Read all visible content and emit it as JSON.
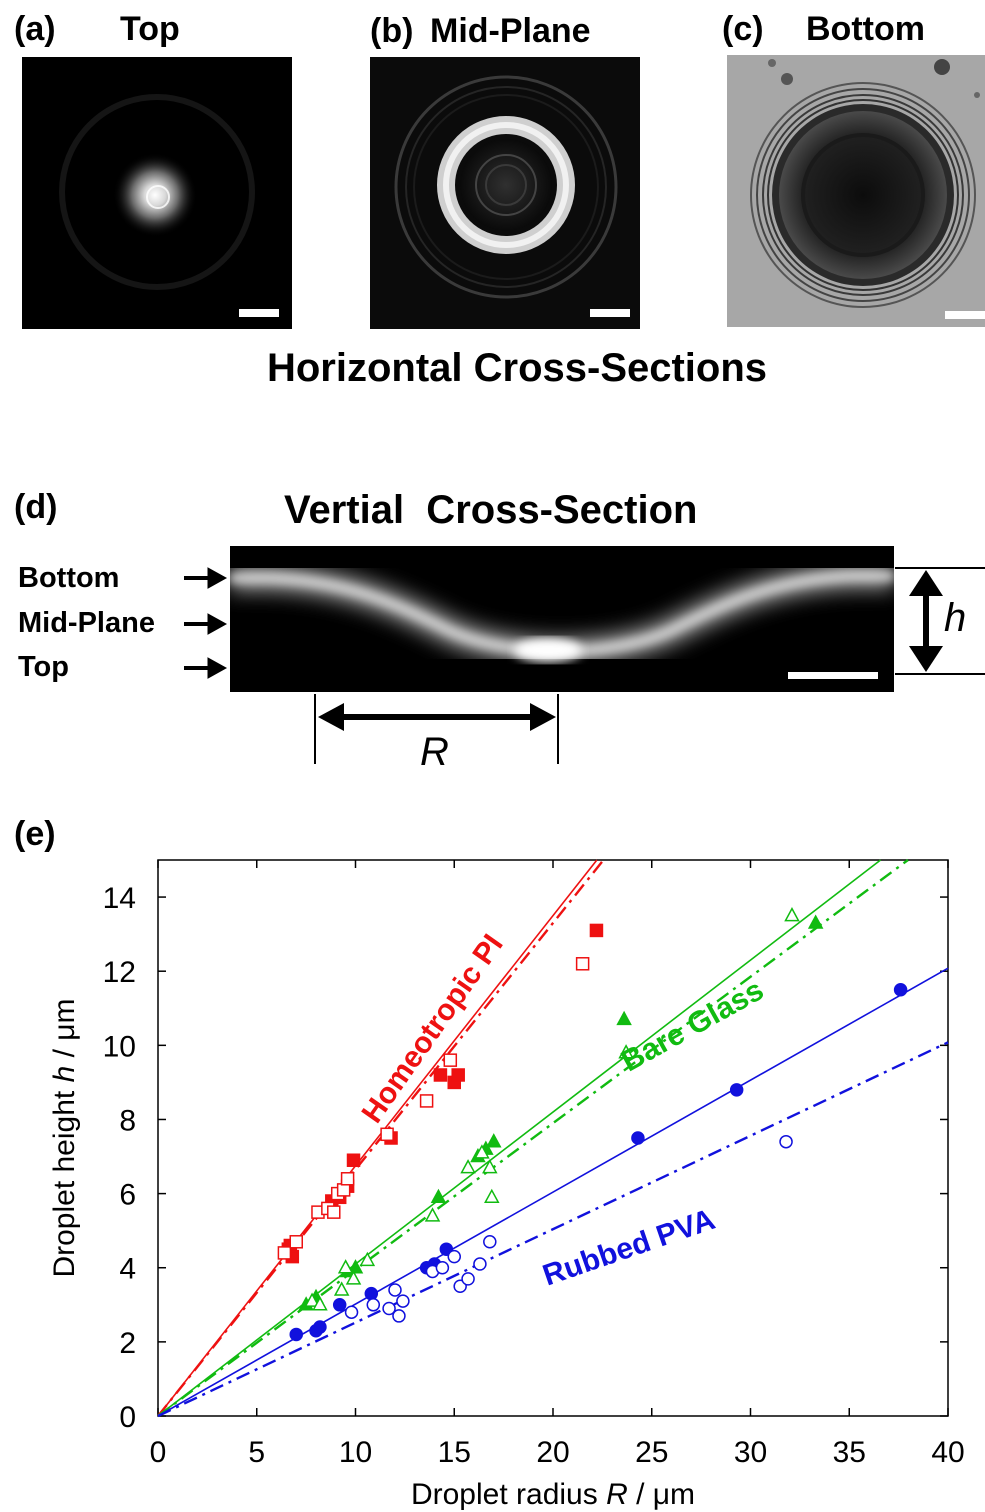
{
  "panel_a": {
    "label": "(a)",
    "title": "Top"
  },
  "panel_b": {
    "label": "(b)",
    "title": "Mid-Plane"
  },
  "panel_c": {
    "label": "(c)",
    "title": "Bottom"
  },
  "horizontal_caption": "Horizontal Cross-Sections",
  "panel_d": {
    "label": "(d)",
    "title": "Vertial  Cross-Section",
    "rows": [
      "Bottom",
      "Mid-Plane",
      "Top"
    ],
    "h_symbol": "h",
    "r_symbol": "R"
  },
  "panel_e": {
    "label": "(e)"
  },
  "chart_data": {
    "type": "scatter",
    "xlabel_prefix": "Droplet radius ",
    "xlabel_var": "R",
    "xlabel_unit": " / μm",
    "ylabel_prefix": "Droplet height ",
    "ylabel_var": "h",
    "ylabel_unit": " / μm",
    "xlim": [
      0,
      40
    ],
    "ylim": [
      0,
      15
    ],
    "xticks": [
      0,
      5,
      10,
      15,
      20,
      25,
      30,
      35,
      40
    ],
    "yticks": [
      0,
      2,
      4,
      6,
      8,
      10,
      12,
      14
    ],
    "colors": {
      "pi": "#ee1111",
      "glass": "#11bb11",
      "pva": "#1111dd"
    },
    "annotations": [
      "Homeotropic PI",
      "Bare Glass",
      "Rubbed PVA"
    ],
    "fit_lines": [
      {
        "group": "pi",
        "style": "solid",
        "slope": 0.675
      },
      {
        "group": "pi",
        "style": "dashdot",
        "slope": 0.665
      },
      {
        "group": "glass",
        "style": "solid",
        "slope": 0.41
      },
      {
        "group": "glass",
        "style": "dashdot",
        "slope": 0.395
      },
      {
        "group": "pva",
        "style": "solid",
        "slope": 0.302
      },
      {
        "group": "pva",
        "style": "dashdot",
        "slope": 0.252
      }
    ],
    "series": [
      {
        "group": "pi",
        "marker": "square",
        "filled": true,
        "points": [
          [
            6.6,
            4.5
          ],
          [
            6.8,
            4.3
          ],
          [
            6.7,
            4.6
          ],
          [
            8.8,
            5.8
          ],
          [
            9.2,
            5.9
          ],
          [
            9.6,
            6.2
          ],
          [
            9.9,
            6.9
          ],
          [
            11.8,
            7.5
          ],
          [
            14.3,
            9.2
          ],
          [
            15.0,
            9.0
          ],
          [
            15.2,
            9.2
          ],
          [
            22.2,
            13.1
          ]
        ]
      },
      {
        "group": "pi",
        "marker": "square",
        "filled": false,
        "points": [
          [
            6.4,
            4.4
          ],
          [
            7.0,
            4.7
          ],
          [
            8.1,
            5.5
          ],
          [
            8.6,
            5.6
          ],
          [
            8.9,
            5.5
          ],
          [
            9.1,
            6.0
          ],
          [
            9.4,
            6.1
          ],
          [
            9.6,
            6.4
          ],
          [
            11.6,
            7.6
          ],
          [
            13.6,
            8.5
          ],
          [
            14.8,
            9.6
          ],
          [
            21.5,
            12.2
          ]
        ]
      },
      {
        "group": "glass",
        "marker": "triangle",
        "filled": true,
        "points": [
          [
            7.5,
            3.0
          ],
          [
            8.0,
            3.2
          ],
          [
            9.6,
            3.9
          ],
          [
            10.0,
            4.0
          ],
          [
            14.2,
            5.9
          ],
          [
            16.2,
            7.0
          ],
          [
            16.6,
            7.2
          ],
          [
            17.0,
            7.4
          ],
          [
            23.6,
            10.7
          ],
          [
            33.3,
            13.3
          ]
        ]
      },
      {
        "group": "glass",
        "marker": "triangle",
        "filled": false,
        "points": [
          [
            7.8,
            3.1
          ],
          [
            8.2,
            3.0
          ],
          [
            9.3,
            3.4
          ],
          [
            9.5,
            4.0
          ],
          [
            9.9,
            3.7
          ],
          [
            10.6,
            4.2
          ],
          [
            13.9,
            5.4
          ],
          [
            15.7,
            6.7
          ],
          [
            16.4,
            7.1
          ],
          [
            16.8,
            6.7
          ],
          [
            16.9,
            5.9
          ],
          [
            23.7,
            9.8
          ],
          [
            32.1,
            13.5
          ]
        ]
      },
      {
        "group": "pva",
        "marker": "circle",
        "filled": true,
        "points": [
          [
            7.0,
            2.2
          ],
          [
            8.0,
            2.3
          ],
          [
            8.2,
            2.4
          ],
          [
            9.2,
            3.0
          ],
          [
            10.8,
            3.3
          ],
          [
            13.6,
            4.0
          ],
          [
            14.0,
            4.1
          ],
          [
            14.6,
            4.5
          ],
          [
            24.3,
            7.5
          ],
          [
            29.3,
            8.8
          ],
          [
            37.6,
            11.5
          ]
        ]
      },
      {
        "group": "pva",
        "marker": "circle",
        "filled": false,
        "points": [
          [
            9.8,
            2.8
          ],
          [
            10.9,
            3.0
          ],
          [
            11.7,
            2.9
          ],
          [
            12.0,
            3.4
          ],
          [
            12.2,
            2.7
          ],
          [
            12.4,
            3.1
          ],
          [
            13.9,
            3.9
          ],
          [
            14.4,
            4.0
          ],
          [
            15.0,
            4.3
          ],
          [
            15.3,
            3.5
          ],
          [
            15.7,
            3.7
          ],
          [
            16.3,
            4.1
          ],
          [
            16.8,
            4.7
          ],
          [
            31.8,
            7.4
          ]
        ]
      }
    ]
  }
}
